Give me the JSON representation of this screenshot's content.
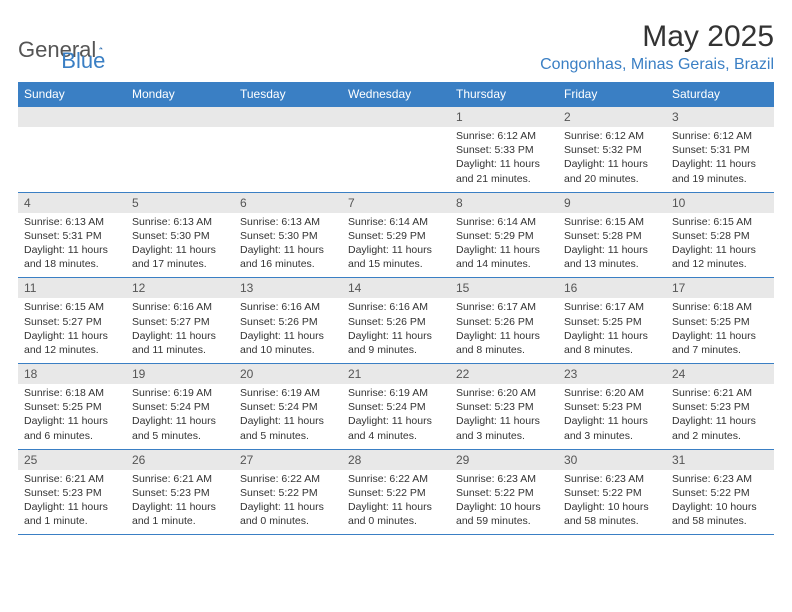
{
  "brand": {
    "part1": "General",
    "part2": "Blue"
  },
  "title": "May 2025",
  "location": "Congonhas, Minas Gerais, Brazil",
  "colors": {
    "accent": "#3a7fc4",
    "header_gray": "#e8e8e8",
    "text": "#333333",
    "muted": "#555555",
    "background": "#ffffff"
  },
  "typography": {
    "title_fontsize": 30,
    "location_fontsize": 16,
    "dayhead_fontsize": 12,
    "daynum_fontsize": 12,
    "body_fontsize": 10.5,
    "font_family": "Arial"
  },
  "day_names": [
    "Sunday",
    "Monday",
    "Tuesday",
    "Wednesday",
    "Thursday",
    "Friday",
    "Saturday"
  ],
  "weeks": [
    [
      {
        "n": "",
        "sr": "",
        "ss": "",
        "dl": ""
      },
      {
        "n": "",
        "sr": "",
        "ss": "",
        "dl": ""
      },
      {
        "n": "",
        "sr": "",
        "ss": "",
        "dl": ""
      },
      {
        "n": "",
        "sr": "",
        "ss": "",
        "dl": ""
      },
      {
        "n": "1",
        "sr": "Sunrise: 6:12 AM",
        "ss": "Sunset: 5:33 PM",
        "dl": "Daylight: 11 hours and 21 minutes."
      },
      {
        "n": "2",
        "sr": "Sunrise: 6:12 AM",
        "ss": "Sunset: 5:32 PM",
        "dl": "Daylight: 11 hours and 20 minutes."
      },
      {
        "n": "3",
        "sr": "Sunrise: 6:12 AM",
        "ss": "Sunset: 5:31 PM",
        "dl": "Daylight: 11 hours and 19 minutes."
      }
    ],
    [
      {
        "n": "4",
        "sr": "Sunrise: 6:13 AM",
        "ss": "Sunset: 5:31 PM",
        "dl": "Daylight: 11 hours and 18 minutes."
      },
      {
        "n": "5",
        "sr": "Sunrise: 6:13 AM",
        "ss": "Sunset: 5:30 PM",
        "dl": "Daylight: 11 hours and 17 minutes."
      },
      {
        "n": "6",
        "sr": "Sunrise: 6:13 AM",
        "ss": "Sunset: 5:30 PM",
        "dl": "Daylight: 11 hours and 16 minutes."
      },
      {
        "n": "7",
        "sr": "Sunrise: 6:14 AM",
        "ss": "Sunset: 5:29 PM",
        "dl": "Daylight: 11 hours and 15 minutes."
      },
      {
        "n": "8",
        "sr": "Sunrise: 6:14 AM",
        "ss": "Sunset: 5:29 PM",
        "dl": "Daylight: 11 hours and 14 minutes."
      },
      {
        "n": "9",
        "sr": "Sunrise: 6:15 AM",
        "ss": "Sunset: 5:28 PM",
        "dl": "Daylight: 11 hours and 13 minutes."
      },
      {
        "n": "10",
        "sr": "Sunrise: 6:15 AM",
        "ss": "Sunset: 5:28 PM",
        "dl": "Daylight: 11 hours and 12 minutes."
      }
    ],
    [
      {
        "n": "11",
        "sr": "Sunrise: 6:15 AM",
        "ss": "Sunset: 5:27 PM",
        "dl": "Daylight: 11 hours and 12 minutes."
      },
      {
        "n": "12",
        "sr": "Sunrise: 6:16 AM",
        "ss": "Sunset: 5:27 PM",
        "dl": "Daylight: 11 hours and 11 minutes."
      },
      {
        "n": "13",
        "sr": "Sunrise: 6:16 AM",
        "ss": "Sunset: 5:26 PM",
        "dl": "Daylight: 11 hours and 10 minutes."
      },
      {
        "n": "14",
        "sr": "Sunrise: 6:16 AM",
        "ss": "Sunset: 5:26 PM",
        "dl": "Daylight: 11 hours and 9 minutes."
      },
      {
        "n": "15",
        "sr": "Sunrise: 6:17 AM",
        "ss": "Sunset: 5:26 PM",
        "dl": "Daylight: 11 hours and 8 minutes."
      },
      {
        "n": "16",
        "sr": "Sunrise: 6:17 AM",
        "ss": "Sunset: 5:25 PM",
        "dl": "Daylight: 11 hours and 8 minutes."
      },
      {
        "n": "17",
        "sr": "Sunrise: 6:18 AM",
        "ss": "Sunset: 5:25 PM",
        "dl": "Daylight: 11 hours and 7 minutes."
      }
    ],
    [
      {
        "n": "18",
        "sr": "Sunrise: 6:18 AM",
        "ss": "Sunset: 5:25 PM",
        "dl": "Daylight: 11 hours and 6 minutes."
      },
      {
        "n": "19",
        "sr": "Sunrise: 6:19 AM",
        "ss": "Sunset: 5:24 PM",
        "dl": "Daylight: 11 hours and 5 minutes."
      },
      {
        "n": "20",
        "sr": "Sunrise: 6:19 AM",
        "ss": "Sunset: 5:24 PM",
        "dl": "Daylight: 11 hours and 5 minutes."
      },
      {
        "n": "21",
        "sr": "Sunrise: 6:19 AM",
        "ss": "Sunset: 5:24 PM",
        "dl": "Daylight: 11 hours and 4 minutes."
      },
      {
        "n": "22",
        "sr": "Sunrise: 6:20 AM",
        "ss": "Sunset: 5:23 PM",
        "dl": "Daylight: 11 hours and 3 minutes."
      },
      {
        "n": "23",
        "sr": "Sunrise: 6:20 AM",
        "ss": "Sunset: 5:23 PM",
        "dl": "Daylight: 11 hours and 3 minutes."
      },
      {
        "n": "24",
        "sr": "Sunrise: 6:21 AM",
        "ss": "Sunset: 5:23 PM",
        "dl": "Daylight: 11 hours and 2 minutes."
      }
    ],
    [
      {
        "n": "25",
        "sr": "Sunrise: 6:21 AM",
        "ss": "Sunset: 5:23 PM",
        "dl": "Daylight: 11 hours and 1 minute."
      },
      {
        "n": "26",
        "sr": "Sunrise: 6:21 AM",
        "ss": "Sunset: 5:23 PM",
        "dl": "Daylight: 11 hours and 1 minute."
      },
      {
        "n": "27",
        "sr": "Sunrise: 6:22 AM",
        "ss": "Sunset: 5:22 PM",
        "dl": "Daylight: 11 hours and 0 minutes."
      },
      {
        "n": "28",
        "sr": "Sunrise: 6:22 AM",
        "ss": "Sunset: 5:22 PM",
        "dl": "Daylight: 11 hours and 0 minutes."
      },
      {
        "n": "29",
        "sr": "Sunrise: 6:23 AM",
        "ss": "Sunset: 5:22 PM",
        "dl": "Daylight: 10 hours and 59 minutes."
      },
      {
        "n": "30",
        "sr": "Sunrise: 6:23 AM",
        "ss": "Sunset: 5:22 PM",
        "dl": "Daylight: 10 hours and 58 minutes."
      },
      {
        "n": "31",
        "sr": "Sunrise: 6:23 AM",
        "ss": "Sunset: 5:22 PM",
        "dl": "Daylight: 10 hours and 58 minutes."
      }
    ]
  ]
}
